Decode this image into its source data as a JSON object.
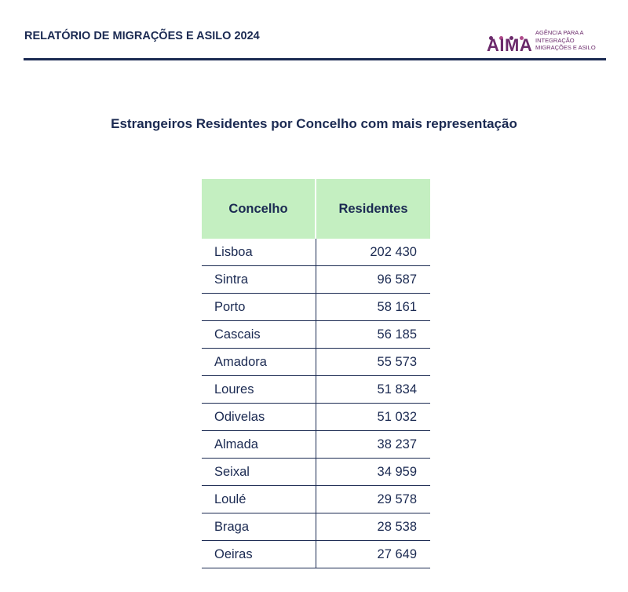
{
  "header": {
    "title": "RELATÓRIO DE MIGRAÇÕES E ASILO 2024",
    "logo": {
      "mark": "AIMA",
      "lines": [
        "AGÊNCIA PARA A",
        "INTEGRAÇÃO",
        "MIGRAÇÕES E ASILO"
      ]
    }
  },
  "subtitle": "Estrangeiros Residentes por Concelho com mais representação",
  "table": {
    "columns": [
      "Concelho",
      "Residentes"
    ],
    "rows": [
      [
        "Lisboa",
        "202 430"
      ],
      [
        "Sintra",
        "96 587"
      ],
      [
        "Porto",
        "58 161"
      ],
      [
        "Cascais",
        "56 185"
      ],
      [
        "Amadora",
        "55 573"
      ],
      [
        "Loures",
        "51 834"
      ],
      [
        "Odivelas",
        "51 032"
      ],
      [
        "Almada",
        "38 237"
      ],
      [
        "Seixal",
        "34 959"
      ],
      [
        "Loulé",
        "29 578"
      ],
      [
        "Braga",
        "28 538"
      ],
      [
        "Oeiras",
        "27 649"
      ]
    ]
  }
}
